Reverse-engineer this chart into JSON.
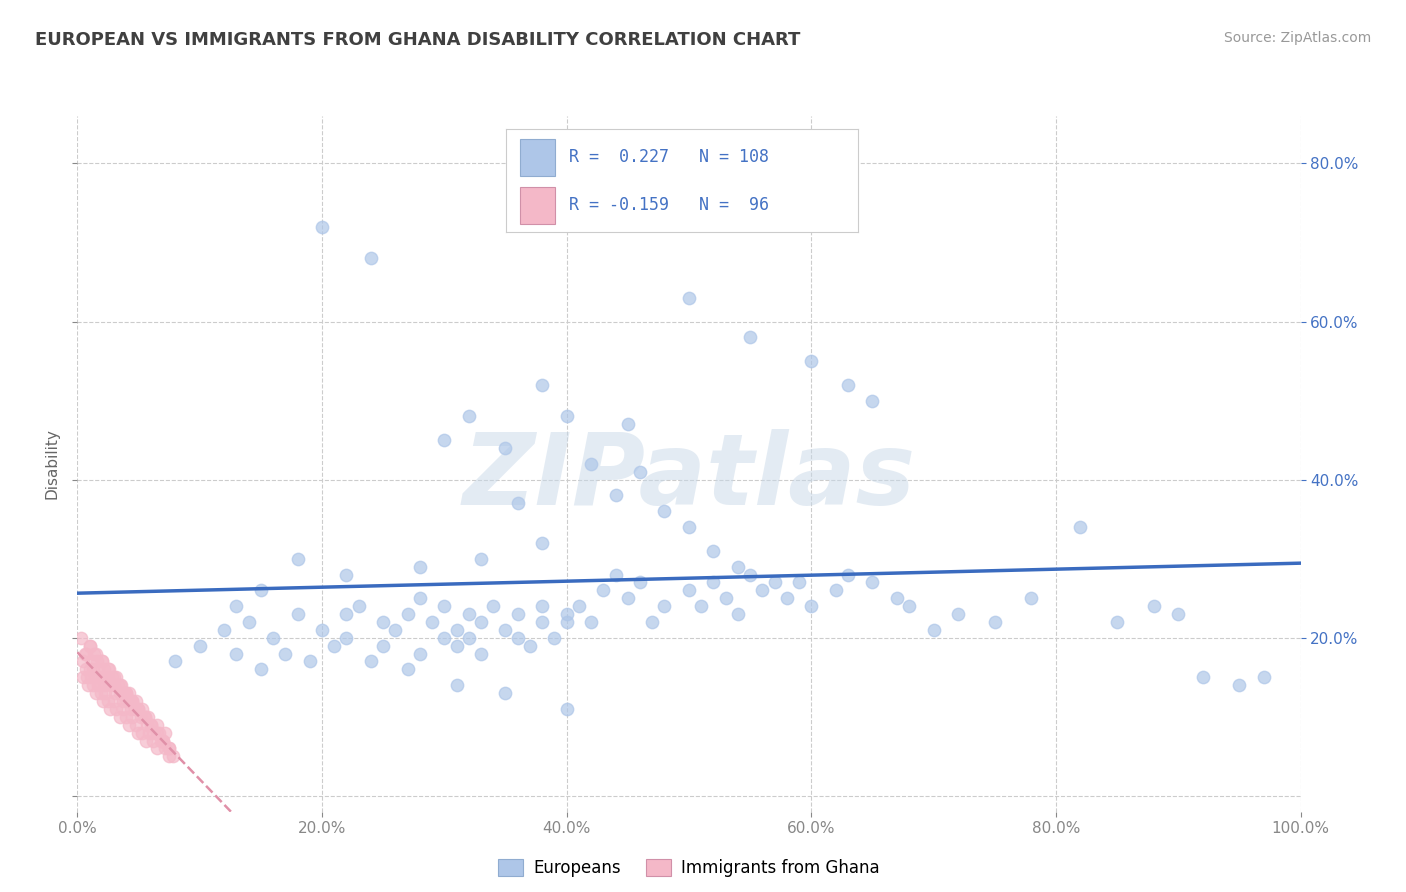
{
  "title": "EUROPEAN VS IMMIGRANTS FROM GHANA DISABILITY CORRELATION CHART",
  "source_text": "Source: ZipAtlas.com",
  "ylabel": "Disability",
  "watermark": "ZIPatlas",
  "xlim": [
    0.0,
    1.0
  ],
  "ylim": [
    -0.02,
    0.86
  ],
  "xticks": [
    0.0,
    0.2,
    0.4,
    0.6,
    0.8,
    1.0
  ],
  "yticks_right": [
    0.2,
    0.4,
    0.6,
    0.8
  ],
  "yticks_left": [
    0.0,
    0.2,
    0.4,
    0.6,
    0.8
  ],
  "xtick_labels": [
    "0.0%",
    "20.0%",
    "40.0%",
    "60.0%",
    "80.0%",
    "100.0%"
  ],
  "ytick_labels_right": [
    "20.0%",
    "40.0%",
    "60.0%",
    "80.0%"
  ],
  "legend_label_blue": "Europeans",
  "legend_label_pink": "Immigrants from Ghana",
  "blue_color": "#aec6e8",
  "pink_color": "#f4b8c8",
  "blue_line_color": "#3a6bbf",
  "pink_line_color": "#e090a8",
  "text_color": "#4472c4",
  "title_color": "#404040",
  "grid_color": "#cccccc",
  "background_color": "#ffffff",
  "blue_scatter_x": [
    0.08,
    0.1,
    0.12,
    0.13,
    0.14,
    0.15,
    0.16,
    0.17,
    0.18,
    0.19,
    0.2,
    0.21,
    0.22,
    0.22,
    0.23,
    0.24,
    0.25,
    0.25,
    0.26,
    0.27,
    0.28,
    0.28,
    0.29,
    0.3,
    0.3,
    0.31,
    0.31,
    0.32,
    0.32,
    0.33,
    0.33,
    0.34,
    0.35,
    0.36,
    0.36,
    0.37,
    0.38,
    0.38,
    0.39,
    0.4,
    0.4,
    0.41,
    0.42,
    0.43,
    0.44,
    0.45,
    0.46,
    0.47,
    0.48,
    0.5,
    0.51,
    0.52,
    0.53,
    0.54,
    0.55,
    0.56,
    0.58,
    0.59,
    0.6,
    0.62,
    0.63,
    0.65,
    0.67,
    0.68,
    0.7,
    0.72,
    0.75,
    0.78,
    0.82,
    0.85,
    0.88,
    0.9,
    0.92,
    0.95,
    0.97,
    0.3,
    0.32,
    0.35,
    0.38,
    0.4,
    0.42,
    0.44,
    0.46,
    0.48,
    0.5,
    0.52,
    0.54,
    0.57,
    0.6,
    0.63,
    0.65,
    0.55,
    0.5,
    0.45,
    0.36,
    0.38,
    0.33,
    0.28,
    0.22,
    0.18,
    0.15,
    0.13,
    0.2,
    0.24,
    0.27,
    0.31,
    0.35,
    0.4
  ],
  "blue_scatter_y": [
    0.17,
    0.19,
    0.21,
    0.18,
    0.22,
    0.16,
    0.2,
    0.18,
    0.23,
    0.17,
    0.21,
    0.19,
    0.23,
    0.2,
    0.24,
    0.17,
    0.22,
    0.19,
    0.21,
    0.23,
    0.18,
    0.25,
    0.22,
    0.2,
    0.24,
    0.21,
    0.19,
    0.23,
    0.2,
    0.22,
    0.18,
    0.24,
    0.21,
    0.23,
    0.2,
    0.19,
    0.22,
    0.24,
    0.2,
    0.23,
    0.22,
    0.24,
    0.22,
    0.26,
    0.28,
    0.25,
    0.27,
    0.22,
    0.24,
    0.26,
    0.24,
    0.27,
    0.25,
    0.23,
    0.28,
    0.26,
    0.25,
    0.27,
    0.24,
    0.26,
    0.28,
    0.27,
    0.25,
    0.24,
    0.21,
    0.23,
    0.22,
    0.25,
    0.34,
    0.22,
    0.24,
    0.23,
    0.15,
    0.14,
    0.15,
    0.45,
    0.48,
    0.44,
    0.52,
    0.48,
    0.42,
    0.38,
    0.41,
    0.36,
    0.34,
    0.31,
    0.29,
    0.27,
    0.55,
    0.52,
    0.5,
    0.58,
    0.63,
    0.47,
    0.37,
    0.32,
    0.3,
    0.29,
    0.28,
    0.3,
    0.26,
    0.24,
    0.72,
    0.68,
    0.16,
    0.14,
    0.13,
    0.11
  ],
  "pink_scatter_x": [
    0.005,
    0.007,
    0.008,
    0.01,
    0.01,
    0.012,
    0.013,
    0.014,
    0.015,
    0.016,
    0.017,
    0.018,
    0.019,
    0.02,
    0.021,
    0.022,
    0.023,
    0.025,
    0.026,
    0.027,
    0.028,
    0.03,
    0.031,
    0.032,
    0.033,
    0.035,
    0.036,
    0.037,
    0.038,
    0.04,
    0.041,
    0.042,
    0.043,
    0.044,
    0.045,
    0.047,
    0.048,
    0.05,
    0.052,
    0.053,
    0.055,
    0.057,
    0.058,
    0.06,
    0.062,
    0.065,
    0.067,
    0.07,
    0.072,
    0.075,
    0.005,
    0.007,
    0.009,
    0.011,
    0.013,
    0.015,
    0.017,
    0.019,
    0.021,
    0.023,
    0.025,
    0.027,
    0.03,
    0.032,
    0.035,
    0.037,
    0.04,
    0.042,
    0.045,
    0.048,
    0.05,
    0.053,
    0.056,
    0.059,
    0.062,
    0.065,
    0.068,
    0.072,
    0.075,
    0.078,
    0.01,
    0.015,
    0.02,
    0.025,
    0.03,
    0.035,
    0.04,
    0.045,
    0.05,
    0.055,
    0.06,
    0.065,
    0.07,
    0.075,
    0.003,
    0.006
  ],
  "pink_scatter_y": [
    0.17,
    0.18,
    0.15,
    0.19,
    0.16,
    0.17,
    0.16,
    0.18,
    0.15,
    0.17,
    0.16,
    0.15,
    0.14,
    0.17,
    0.15,
    0.16,
    0.14,
    0.15,
    0.16,
    0.14,
    0.15,
    0.14,
    0.13,
    0.15,
    0.14,
    0.13,
    0.14,
    0.12,
    0.13,
    0.13,
    0.12,
    0.13,
    0.12,
    0.11,
    0.12,
    0.11,
    0.12,
    0.11,
    0.1,
    0.11,
    0.1,
    0.09,
    0.1,
    0.09,
    0.08,
    0.09,
    0.08,
    0.07,
    0.08,
    0.06,
    0.15,
    0.16,
    0.14,
    0.15,
    0.14,
    0.13,
    0.14,
    0.13,
    0.12,
    0.13,
    0.12,
    0.11,
    0.12,
    0.11,
    0.1,
    0.11,
    0.1,
    0.09,
    0.1,
    0.09,
    0.08,
    0.08,
    0.07,
    0.08,
    0.07,
    0.06,
    0.07,
    0.06,
    0.05,
    0.05,
    0.19,
    0.18,
    0.17,
    0.16,
    0.15,
    0.14,
    0.13,
    0.12,
    0.11,
    0.1,
    0.09,
    0.08,
    0.07,
    0.06,
    0.2,
    0.18
  ]
}
